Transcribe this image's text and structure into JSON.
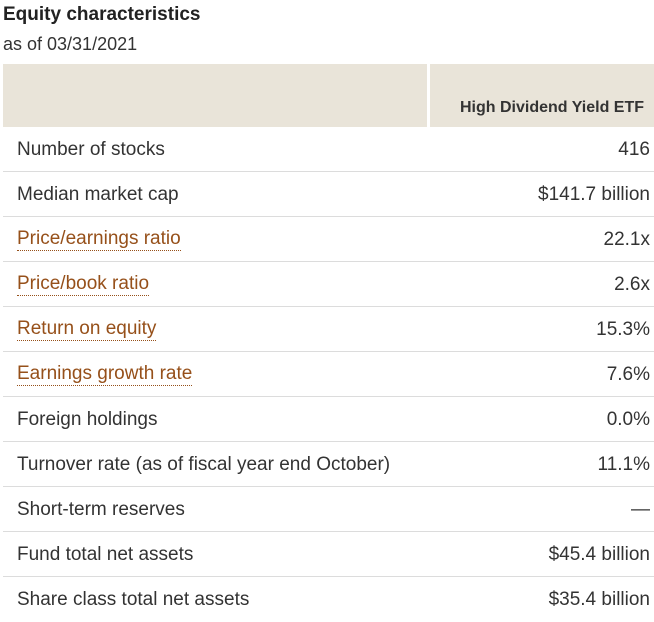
{
  "header": {
    "title": "Equity characteristics",
    "as_of": "as of 03/31/2021"
  },
  "table": {
    "column_header": "High Dividend Yield ETF",
    "rows": [
      {
        "label": "Number of stocks",
        "value": "416",
        "is_link": false
      },
      {
        "label": "Median market cap",
        "value": "$141.7 billion",
        "is_link": false
      },
      {
        "label": "Price/earnings ratio",
        "value": "22.1x",
        "is_link": true
      },
      {
        "label": "Price/book ratio",
        "value": "2.6x",
        "is_link": true
      },
      {
        "label": "Return on equity",
        "value": "15.3%",
        "is_link": true
      },
      {
        "label": "Earnings growth rate",
        "value": "7.6%",
        "is_link": true
      },
      {
        "label": "Foreign holdings",
        "value": "0.0%",
        "is_link": false
      },
      {
        "label": "Turnover rate (as of fiscal year end October)",
        "value": "11.1%",
        "is_link": false
      },
      {
        "label": "Short-term reserves",
        "value": "—",
        "is_link": false
      },
      {
        "label": "Fund total net assets",
        "value": "$45.4 billion",
        "is_link": false
      },
      {
        "label": "Share class total net assets",
        "value": "$35.4 billion",
        "is_link": false
      }
    ]
  },
  "colors": {
    "header_bg": "#e9e4d9",
    "link": "#96501a",
    "text": "#333333",
    "divider": "#dcdcdc"
  }
}
